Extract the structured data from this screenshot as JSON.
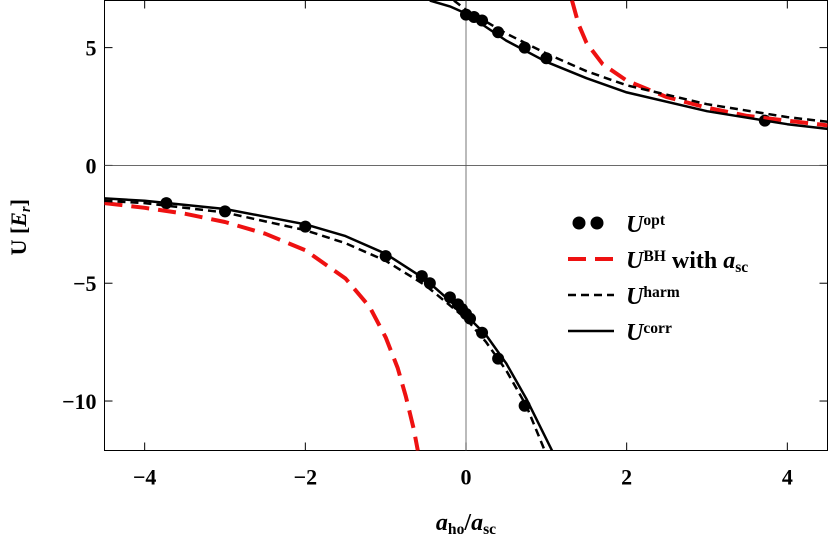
{
  "chart_data": {
    "type": "line",
    "x_label": [
      {
        "text": "a",
        "italic": true
      },
      {
        "text": "ho",
        "sub": true
      },
      {
        "text": "/"
      },
      {
        "text": "a",
        "italic": true
      },
      {
        "text": "sc",
        "sub": true
      }
    ],
    "y_label": [
      {
        "text": "U ["
      },
      {
        "text": "E",
        "italic": true
      },
      {
        "text": "r",
        "sub": true,
        "italic": true
      },
      {
        "text": "]"
      }
    ],
    "xlim": [
      -4.5,
      4.5
    ],
    "ylim": [
      -12.1,
      7
    ],
    "xticks": [
      {
        "value": -4,
        "label": "−4"
      },
      {
        "value": -2,
        "label": "−2"
      },
      0,
      2,
      4
    ],
    "yticks": [
      {
        "value": -10,
        "label": "−10"
      },
      {
        "value": -5,
        "label": "−5"
      },
      0,
      5
    ],
    "zero_lines": true,
    "legend": "right",
    "series": [
      {
        "name": [
          {
            "text": "U",
            "italic": true
          },
          {
            "text": "opt",
            "sup": true
          }
        ],
        "kind": "scatter",
        "color": "#000000",
        "x": [
          -3.73,
          -3.0,
          -2.0,
          -1.0,
          -0.55,
          -0.45,
          -0.2,
          -0.1,
          -0.05,
          0.0,
          0.05,
          0.2,
          0.4,
          0.73,
          0.0,
          0.1,
          0.2,
          0.4,
          0.73,
          1.0,
          3.72
        ],
        "values": [
          -1.6,
          -1.95,
          -2.6,
          -3.85,
          -4.7,
          -5.0,
          -5.6,
          -5.9,
          -6.1,
          -6.3,
          -6.5,
          -7.1,
          -8.2,
          -10.2,
          6.4,
          6.3,
          6.15,
          5.65,
          5.0,
          4.55,
          1.9
        ]
      },
      {
        "name": [
          {
            "text": "U",
            "italic": true
          },
          {
            "text": "BH",
            "sup": true
          },
          {
            "text": " with "
          },
          {
            "text": "a",
            "italic": true
          },
          {
            "text": "sc",
            "sub": true
          }
        ],
        "kind": "line",
        "color": "#ee1111",
        "dash": [
          18,
          9
        ],
        "width": 4,
        "x": [
          -4.5,
          -4,
          -3.5,
          -3,
          -2.5,
          -2,
          -1.5,
          -1.2,
          -1,
          -0.85,
          -0.75,
          -0.65,
          -0.6,
          null,
          1.32,
          1.4,
          1.5,
          1.7,
          2,
          2.5,
          3,
          3.5,
          4,
          4.5
        ],
        "values": [
          -1.6,
          -1.8,
          -2.05,
          -2.4,
          -2.9,
          -3.6,
          -4.8,
          -6.0,
          -7.3,
          -8.6,
          -9.8,
          -11.2,
          -12.1,
          null,
          7.0,
          6.0,
          5.2,
          4.3,
          3.6,
          2.9,
          2.45,
          2.1,
          1.9,
          1.7
        ]
      },
      {
        "name": [
          {
            "text": "U",
            "italic": true
          },
          {
            "text": "harm",
            "sup": true
          }
        ],
        "kind": "line",
        "color": "#000000",
        "dash": [
          8,
          5
        ],
        "width": 2.5,
        "x": [
          -4.5,
          -4,
          -3,
          -2,
          -1.5,
          -1,
          -0.5,
          0,
          0.25,
          0.5,
          0.75,
          0.98,
          null,
          -0.15,
          0,
          0.25,
          0.5,
          1,
          1.5,
          2,
          3,
          4,
          4.5
        ],
        "values": [
          -1.5,
          -1.6,
          -2.0,
          -2.75,
          -3.3,
          -4.05,
          -5.1,
          -6.5,
          -7.5,
          -8.7,
          -10.2,
          -12.1,
          null,
          7.0,
          6.6,
          6.1,
          5.6,
          4.75,
          4.0,
          3.4,
          2.6,
          2.05,
          1.85
        ]
      },
      {
        "name": [
          {
            "text": "U",
            "italic": true
          },
          {
            "text": "corr",
            "sup": true
          }
        ],
        "kind": "line",
        "color": "#000000",
        "width": 2.5,
        "x": [
          -4.5,
          -4,
          -3,
          -2,
          -1.5,
          -1,
          -0.5,
          0,
          0.25,
          0.5,
          0.75,
          1.07,
          null,
          -0.45,
          -0.2,
          0,
          0.5,
          1,
          1.5,
          2,
          3,
          4,
          4.5
        ],
        "values": [
          -1.4,
          -1.5,
          -1.85,
          -2.5,
          -3.0,
          -3.75,
          -4.85,
          -6.35,
          -7.2,
          -8.4,
          -9.9,
          -12.1,
          null,
          7.0,
          6.75,
          6.45,
          5.3,
          4.4,
          3.7,
          3.1,
          2.3,
          1.75,
          1.55
        ]
      }
    ]
  }
}
